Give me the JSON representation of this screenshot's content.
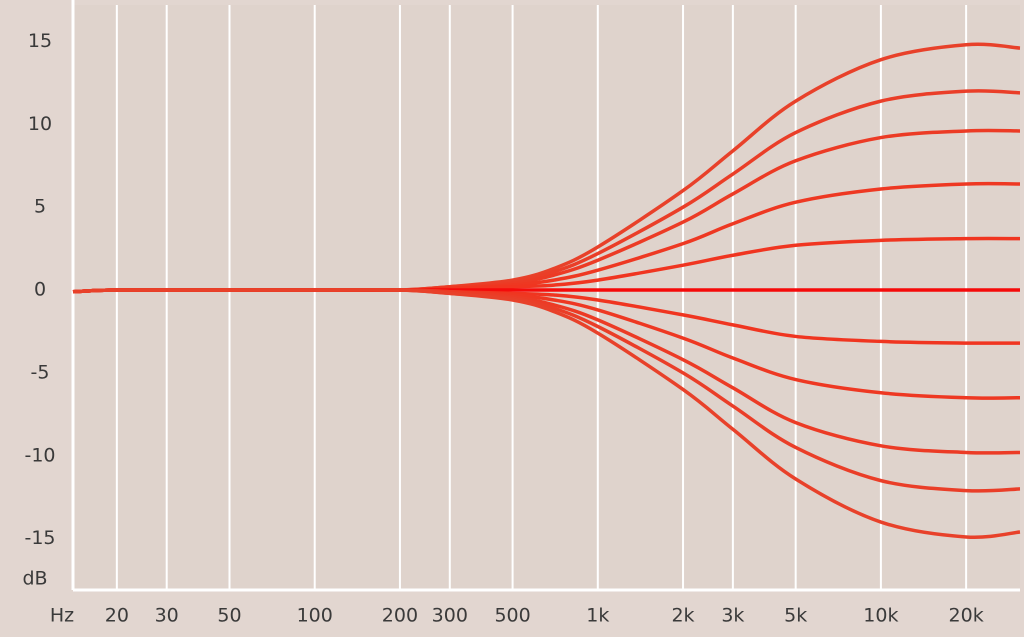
{
  "chart_data": {
    "type": "line",
    "x_label": "Hz",
    "y_label": "dB",
    "log_x": true,
    "grid": {
      "x": true,
      "y": false
    },
    "xlim": [
      14,
      31000
    ],
    "ylim": [
      -18.1,
      17.2
    ],
    "xticks": [
      20,
      30,
      50,
      100,
      200,
      300,
      500,
      {
        "value": 1000,
        "label": "1k"
      },
      {
        "value": 2000,
        "label": "2k"
      },
      {
        "value": 3000,
        "label": "3k"
      },
      {
        "value": 5000,
        "label": "5k"
      },
      {
        "value": 10000,
        "label": "10k"
      },
      {
        "value": 20000,
        "label": "20k"
      }
    ],
    "yticks": [
      -15,
      -10,
      -5,
      0,
      5,
      10,
      15
    ],
    "x": [
      14,
      20,
      50,
      100,
      200,
      300,
      500,
      700,
      1000,
      2000,
      3000,
      5000,
      10000,
      20000,
      31000
    ],
    "series": [
      {
        "color": "#e8412a",
        "values": [
          -0.1,
          0,
          0,
          0,
          0,
          0.2,
          0.6,
          1.3,
          2.6,
          6.0,
          8.4,
          11.4,
          13.9,
          14.8,
          14.6
        ]
      },
      {
        "color": "#ea3e28",
        "values": [
          -0.1,
          0,
          0,
          0,
          0,
          0.2,
          0.5,
          1.1,
          2.2,
          5.0,
          7.0,
          9.5,
          11.4,
          12.0,
          11.9
        ]
      },
      {
        "color": "#ec3b25",
        "values": [
          -0.1,
          0,
          0,
          0,
          0,
          0.1,
          0.4,
          0.9,
          1.8,
          4.1,
          5.8,
          7.8,
          9.2,
          9.6,
          9.6
        ]
      },
      {
        "color": "#ee3822",
        "values": [
          -0.1,
          0,
          0,
          0,
          0,
          0.1,
          0.3,
          0.6,
          1.2,
          2.8,
          4.0,
          5.3,
          6.1,
          6.4,
          6.4
        ]
      },
      {
        "color": "#f03520",
        "values": [
          -0.1,
          0,
          0,
          0,
          0,
          0.1,
          0.2,
          0.3,
          0.6,
          1.5,
          2.1,
          2.7,
          3.0,
          3.1,
          3.1
        ]
      },
      {
        "color": "#f50a0a",
        "values": [
          -0.1,
          0,
          0,
          0,
          0,
          0,
          0,
          0,
          0,
          0,
          0,
          0,
          0,
          0,
          0
        ]
      },
      {
        "color": "#f03520",
        "values": [
          -0.1,
          0,
          0,
          0,
          0,
          -0.1,
          -0.2,
          -0.3,
          -0.6,
          -1.5,
          -2.1,
          -2.8,
          -3.1,
          -3.2,
          -3.2
        ]
      },
      {
        "color": "#ee3822",
        "values": [
          -0.1,
          0,
          0,
          0,
          0,
          -0.1,
          -0.3,
          -0.6,
          -1.2,
          -2.9,
          -4.1,
          -5.4,
          -6.2,
          -6.5,
          -6.5
        ]
      },
      {
        "color": "#ec3b25",
        "values": [
          -0.1,
          0,
          0,
          0,
          0,
          -0.1,
          -0.4,
          -0.9,
          -1.8,
          -4.2,
          -5.9,
          -8.0,
          -9.4,
          -9.8,
          -9.8
        ]
      },
      {
        "color": "#ea3e28",
        "values": [
          -0.1,
          0,
          0,
          0,
          0,
          -0.2,
          -0.5,
          -1.1,
          -2.2,
          -5.0,
          -7.0,
          -9.5,
          -11.5,
          -12.1,
          -12.0
        ]
      },
      {
        "color": "#e8412a",
        "values": [
          -0.1,
          0,
          0,
          0,
          0,
          -0.2,
          -0.6,
          -1.3,
          -2.6,
          -6.0,
          -8.4,
          -11.4,
          -14.0,
          -14.9,
          -14.6
        ]
      }
    ]
  }
}
